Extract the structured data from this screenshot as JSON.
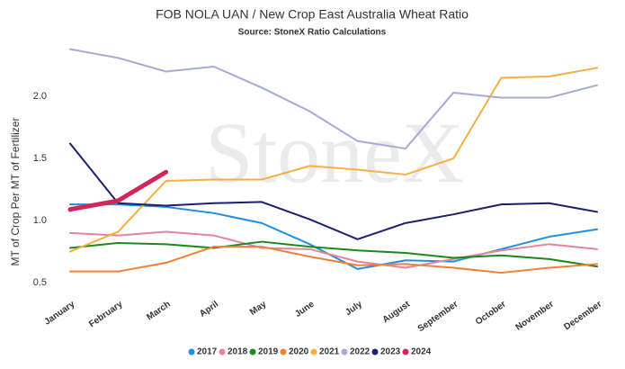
{
  "chart_data": {
    "type": "line",
    "title": "FOB NOLA UAN / New Crop East Australia Wheat Ratio",
    "subtitle": "Source: StoneX Ratio Calculations",
    "y_label": "MT of Crop Per MT of Fertilizer",
    "watermark": "StoneX",
    "categories": [
      "January",
      "February",
      "March",
      "April",
      "May",
      "June",
      "July",
      "August",
      "September",
      "October",
      "November",
      "December"
    ],
    "ylim": [
      0.45,
      2.45
    ],
    "yticks": [
      0.5,
      {
        "value": 1,
        "label": "1.0"
      },
      1.5,
      {
        "value": 2,
        "label": "2.0"
      }
    ],
    "grid": false,
    "legend": "bottom",
    "series": [
      {
        "name": "2017",
        "color": "#1f8fe0",
        "values": [
          1.13,
          1.13,
          1.11,
          1.06,
          0.98,
          0.81,
          0.61,
          0.68,
          0.67,
          0.77,
          0.87,
          0.93
        ]
      },
      {
        "name": "2018",
        "color": "#e384a0",
        "values": [
          0.9,
          0.88,
          0.91,
          0.88,
          0.78,
          0.77,
          0.67,
          0.62,
          0.69,
          0.76,
          0.81,
          0.77
        ]
      },
      {
        "name": "2019",
        "color": "#1a8a1a",
        "values": [
          0.78,
          0.82,
          0.81,
          0.78,
          0.83,
          0.79,
          0.76,
          0.74,
          0.7,
          0.72,
          0.69,
          0.63
        ]
      },
      {
        "name": "2020",
        "color": "#f07f3c",
        "values": [
          0.59,
          0.59,
          0.66,
          0.79,
          0.79,
          0.71,
          0.64,
          0.65,
          0.62,
          0.58,
          0.62,
          0.65
        ]
      },
      {
        "name": "2021",
        "color": "#f5b041",
        "values": [
          0.75,
          0.91,
          1.32,
          1.33,
          1.33,
          1.44,
          1.41,
          1.37,
          1.5,
          2.15,
          2.16,
          2.23
        ]
      },
      {
        "name": "2022",
        "color": "#a9a9d6",
        "values": [
          2.38,
          2.31,
          2.2,
          2.24,
          2.07,
          1.88,
          1.64,
          1.58,
          2.03,
          1.99,
          1.99,
          2.09
        ]
      },
      {
        "name": "2023",
        "color": "#1a1f6e",
        "values": [
          1.62,
          1.14,
          1.12,
          1.14,
          1.15,
          1.01,
          0.85,
          0.98,
          1.05,
          1.13,
          1.14,
          1.07
        ]
      },
      {
        "name": "2024",
        "color": "#d0265a",
        "values": [
          1.09,
          1.16,
          1.39,
          null,
          null,
          null,
          null,
          null,
          null,
          null,
          null,
          null
        ]
      }
    ]
  }
}
